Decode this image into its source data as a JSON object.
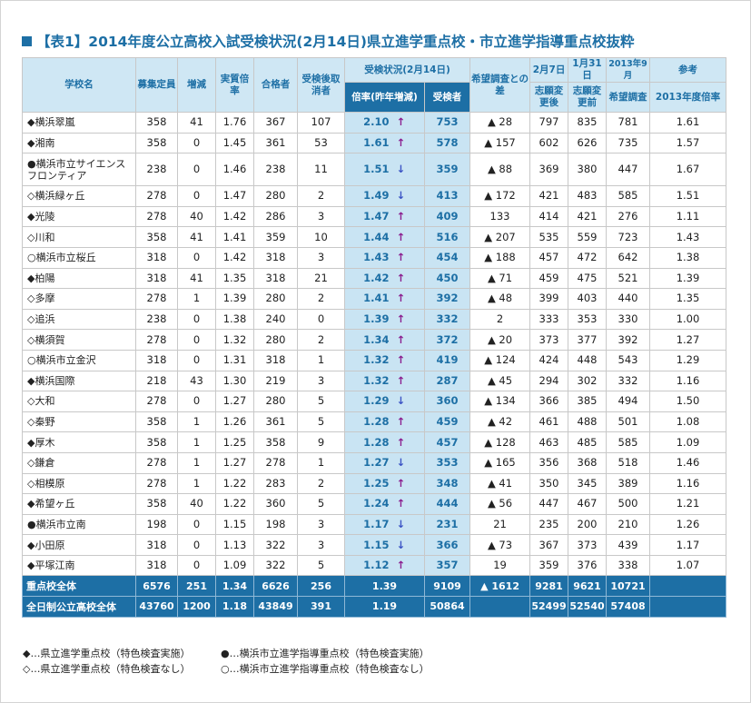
{
  "title": "【表1】2014年度公立高校入試受検状況(2月14日)県立進学重点校・市立進学指導重点校抜粋",
  "header": {
    "school": "学校名",
    "capacity": "募集定員",
    "change": "増減",
    "real_ratio": "実質倍率",
    "passed": "合格者",
    "withdrawn": "受検後取消者",
    "status_group": "受検状況(2月14日)",
    "ratio_sub": "倍率(昨年増減)",
    "examinees_sub": "受検者",
    "survey_diff": "希望調査との差",
    "feb7": "2月7日",
    "feb7_sub": "志願変更後",
    "jan31": "1月31日",
    "jan31_sub": "志願変更前",
    "sep2013": "2013年9月",
    "sep2013_sub": "希望調査",
    "ref": "参考",
    "ref_sub": "2013年度倍率"
  },
  "rows": [
    {
      "name": "◆横浜翠嵐",
      "cap": "358",
      "chg": "41",
      "real": "1.76",
      "pass": "367",
      "wd": "107",
      "ratio": "2.10",
      "arrow": "↑",
      "dir": "up",
      "exam": "753",
      "diff": "▲ 28",
      "f7": "797",
      "j31": "835",
      "s9": "781",
      "ref": "1.61"
    },
    {
      "name": "◆湘南",
      "cap": "358",
      "chg": "0",
      "real": "1.45",
      "pass": "361",
      "wd": "53",
      "ratio": "1.61",
      "arrow": "↑",
      "dir": "up",
      "exam": "578",
      "diff": "▲ 157",
      "f7": "602",
      "j31": "626",
      "s9": "735",
      "ref": "1.57"
    },
    {
      "name": "●横浜市立サイエンスフロンティア",
      "cap": "238",
      "chg": "0",
      "real": "1.46",
      "pass": "238",
      "wd": "11",
      "ratio": "1.51",
      "arrow": "↓",
      "dir": "down",
      "exam": "359",
      "diff": "▲ 88",
      "f7": "369",
      "j31": "380",
      "s9": "447",
      "ref": "1.67"
    },
    {
      "name": "◇横浜緑ヶ丘",
      "cap": "278",
      "chg": "0",
      "real": "1.47",
      "pass": "280",
      "wd": "2",
      "ratio": "1.49",
      "arrow": "↓",
      "dir": "down",
      "exam": "413",
      "diff": "▲ 172",
      "f7": "421",
      "j31": "483",
      "s9": "585",
      "ref": "1.51"
    },
    {
      "name": "◆光陵",
      "cap": "278",
      "chg": "40",
      "real": "1.42",
      "pass": "286",
      "wd": "3",
      "ratio": "1.47",
      "arrow": "↑",
      "dir": "up",
      "exam": "409",
      "diff": "133",
      "f7": "414",
      "j31": "421",
      "s9": "276",
      "ref": "1.11"
    },
    {
      "name": "◇川和",
      "cap": "358",
      "chg": "41",
      "real": "1.41",
      "pass": "359",
      "wd": "10",
      "ratio": "1.44",
      "arrow": "↑",
      "dir": "up",
      "exam": "516",
      "diff": "▲ 207",
      "f7": "535",
      "j31": "559",
      "s9": "723",
      "ref": "1.43"
    },
    {
      "name": "○横浜市立桜丘",
      "cap": "318",
      "chg": "0",
      "real": "1.42",
      "pass": "318",
      "wd": "3",
      "ratio": "1.43",
      "arrow": "↑",
      "dir": "up",
      "exam": "454",
      "diff": "▲ 188",
      "f7": "457",
      "j31": "472",
      "s9": "642",
      "ref": "1.38"
    },
    {
      "name": "◆柏陽",
      "cap": "318",
      "chg": "41",
      "real": "1.35",
      "pass": "318",
      "wd": "21",
      "ratio": "1.42",
      "arrow": "↑",
      "dir": "up",
      "exam": "450",
      "diff": "▲ 71",
      "f7": "459",
      "j31": "475",
      "s9": "521",
      "ref": "1.39"
    },
    {
      "name": "◇多摩",
      "cap": "278",
      "chg": "1",
      "real": "1.39",
      "pass": "280",
      "wd": "2",
      "ratio": "1.41",
      "arrow": "↑",
      "dir": "up",
      "exam": "392",
      "diff": "▲ 48",
      "f7": "399",
      "j31": "403",
      "s9": "440",
      "ref": "1.35"
    },
    {
      "name": "◇追浜",
      "cap": "238",
      "chg": "0",
      "real": "1.38",
      "pass": "240",
      "wd": "0",
      "ratio": "1.39",
      "arrow": "↑",
      "dir": "up",
      "exam": "332",
      "diff": "2",
      "f7": "333",
      "j31": "353",
      "s9": "330",
      "ref": "1.00"
    },
    {
      "name": "◇横須賀",
      "cap": "278",
      "chg": "0",
      "real": "1.32",
      "pass": "280",
      "wd": "2",
      "ratio": "1.34",
      "arrow": "↑",
      "dir": "up",
      "exam": "372",
      "diff": "▲ 20",
      "f7": "373",
      "j31": "377",
      "s9": "392",
      "ref": "1.27"
    },
    {
      "name": "○横浜市立金沢",
      "cap": "318",
      "chg": "0",
      "real": "1.31",
      "pass": "318",
      "wd": "1",
      "ratio": "1.32",
      "arrow": "↑",
      "dir": "up",
      "exam": "419",
      "diff": "▲ 124",
      "f7": "424",
      "j31": "448",
      "s9": "543",
      "ref": "1.29"
    },
    {
      "name": "◆横浜国際",
      "cap": "218",
      "chg": "43",
      "real": "1.30",
      "pass": "219",
      "wd": "3",
      "ratio": "1.32",
      "arrow": "↑",
      "dir": "up",
      "exam": "287",
      "diff": "▲ 45",
      "f7": "294",
      "j31": "302",
      "s9": "332",
      "ref": "1.16"
    },
    {
      "name": "◇大和",
      "cap": "278",
      "chg": "0",
      "real": "1.27",
      "pass": "280",
      "wd": "5",
      "ratio": "1.29",
      "arrow": "↓",
      "dir": "down",
      "exam": "360",
      "diff": "▲ 134",
      "f7": "366",
      "j31": "385",
      "s9": "494",
      "ref": "1.50"
    },
    {
      "name": "◇秦野",
      "cap": "358",
      "chg": "1",
      "real": "1.26",
      "pass": "361",
      "wd": "5",
      "ratio": "1.28",
      "arrow": "↑",
      "dir": "up",
      "exam": "459",
      "diff": "▲ 42",
      "f7": "461",
      "j31": "488",
      "s9": "501",
      "ref": "1.08"
    },
    {
      "name": "◆厚木",
      "cap": "358",
      "chg": "1",
      "real": "1.25",
      "pass": "358",
      "wd": "9",
      "ratio": "1.28",
      "arrow": "↑",
      "dir": "up",
      "exam": "457",
      "diff": "▲ 128",
      "f7": "463",
      "j31": "485",
      "s9": "585",
      "ref": "1.09"
    },
    {
      "name": "◇鎌倉",
      "cap": "278",
      "chg": "1",
      "real": "1.27",
      "pass": "278",
      "wd": "1",
      "ratio": "1.27",
      "arrow": "↓",
      "dir": "down",
      "exam": "353",
      "diff": "▲ 165",
      "f7": "356",
      "j31": "368",
      "s9": "518",
      "ref": "1.46"
    },
    {
      "name": "◇相模原",
      "cap": "278",
      "chg": "1",
      "real": "1.22",
      "pass": "283",
      "wd": "2",
      "ratio": "1.25",
      "arrow": "↑",
      "dir": "up",
      "exam": "348",
      "diff": "▲ 41",
      "f7": "350",
      "j31": "345",
      "s9": "389",
      "ref": "1.16"
    },
    {
      "name": "◆希望ヶ丘",
      "cap": "358",
      "chg": "40",
      "real": "1.22",
      "pass": "360",
      "wd": "5",
      "ratio": "1.24",
      "arrow": "↑",
      "dir": "up",
      "exam": "444",
      "diff": "▲ 56",
      "f7": "447",
      "j31": "467",
      "s9": "500",
      "ref": "1.21"
    },
    {
      "name": "●横浜市立南",
      "cap": "198",
      "chg": "0",
      "real": "1.15",
      "pass": "198",
      "wd": "3",
      "ratio": "1.17",
      "arrow": "↓",
      "dir": "down",
      "exam": "231",
      "diff": "21",
      "f7": "235",
      "j31": "200",
      "s9": "210",
      "ref": "1.26"
    },
    {
      "name": "◆小田原",
      "cap": "318",
      "chg": "0",
      "real": "1.13",
      "pass": "322",
      "wd": "3",
      "ratio": "1.15",
      "arrow": "↓",
      "dir": "down",
      "exam": "366",
      "diff": "▲ 73",
      "f7": "367",
      "j31": "373",
      "s9": "439",
      "ref": "1.17"
    },
    {
      "name": "◆平塚江南",
      "cap": "318",
      "chg": "0",
      "real": "1.09",
      "pass": "322",
      "wd": "5",
      "ratio": "1.12",
      "arrow": "↑",
      "dir": "up",
      "exam": "357",
      "diff": "19",
      "f7": "359",
      "j31": "376",
      "s9": "338",
      "ref": "1.07"
    }
  ],
  "totals": [
    {
      "name": "重点校全体",
      "cap": "6576",
      "chg": "251",
      "real": "1.34",
      "pass": "6626",
      "wd": "256",
      "ratio": "1.39",
      "exam": "9109",
      "diff": "▲ 1612",
      "f7": "9281",
      "j31": "9621",
      "s9": "10721",
      "ref": ""
    },
    {
      "name": "全日制公立高校全体",
      "cap": "43760",
      "chg": "1200",
      "real": "1.18",
      "pass": "43849",
      "wd": "391",
      "ratio": "1.19",
      "exam": "50864",
      "diff": "",
      "f7": "52499",
      "j31": "52540",
      "s9": "57408",
      "ref": ""
    }
  ],
  "legend": {
    "l1": "◆…県立進学重点校（特色検査実施）",
    "l2": "●…横浜市立進学指導重点校（特色検査実施）",
    "l3": "◇…県立進学重点校（特色検査なし）",
    "l4": "○…横浜市立進学指導重点校（特色検査なし）"
  },
  "colors": {
    "brand": "#1d6fa5",
    "header_bg": "#cfe7f4",
    "highlight": "#c9e4f3",
    "arrow_up": "#8a1c8e",
    "arrow_down": "#3a52c4"
  }
}
